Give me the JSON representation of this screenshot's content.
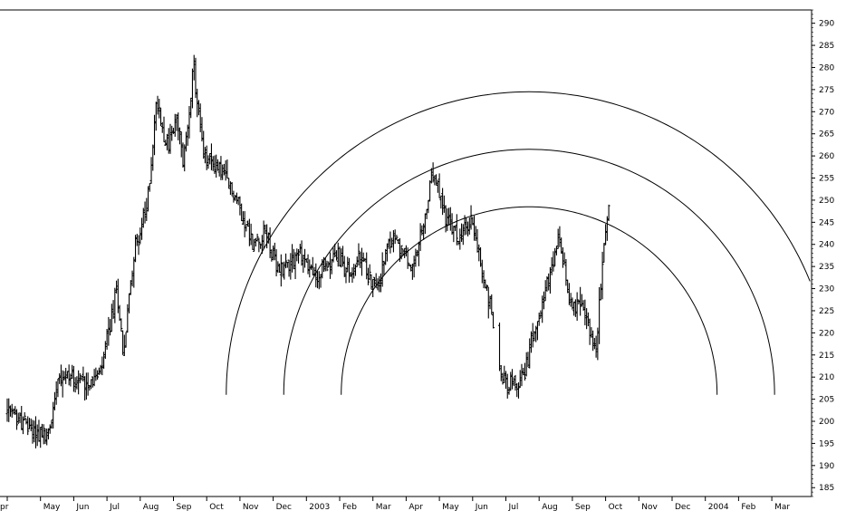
{
  "chart_data": {
    "type": "ohlc",
    "x_axis": {
      "tick_labels": [
        "Apr",
        "May",
        "Jun",
        "Jul",
        "Aug",
        "Sep",
        "Oct",
        "Nov",
        "Dec",
        "2003",
        "Feb",
        "Mar",
        "Apr",
        "May",
        "Jun",
        "Jul",
        "Aug",
        "Sep",
        "Oct",
        "Nov",
        "Dec",
        "2004",
        "Feb",
        "Mar"
      ],
      "first_label_shown": "pr"
    },
    "y_axis": {
      "position": "right",
      "ylim": [
        183,
        293
      ],
      "tick_values": [
        185,
        190,
        195,
        200,
        205,
        210,
        215,
        220,
        225,
        230,
        235,
        240,
        245,
        250,
        255,
        260,
        265,
        270,
        275,
        280,
        285,
        290
      ]
    },
    "grid": false,
    "series": [
      {
        "style": "bar",
        "color": "#000000",
        "waypoints": [
          [
            0,
            202
          ],
          [
            1.2,
            196
          ],
          [
            1.4,
            203
          ],
          [
            1.5,
            211
          ],
          [
            2.3,
            209
          ],
          [
            2.8,
            210
          ],
          [
            3.0,
            218
          ],
          [
            3.3,
            230
          ],
          [
            3.5,
            215
          ],
          [
            3.8,
            238
          ],
          [
            4.2,
            248
          ],
          [
            4.5,
            273
          ],
          [
            4.8,
            262
          ],
          [
            5.1,
            268
          ],
          [
            5.3,
            258
          ],
          [
            5.6,
            280
          ],
          [
            5.9,
            260
          ],
          [
            6.4,
            257
          ],
          [
            6.9,
            250
          ],
          [
            7.4,
            240
          ],
          [
            7.8,
            243
          ],
          [
            8.1,
            234
          ],
          [
            8.8,
            238
          ],
          [
            9.0,
            236
          ],
          [
            9.3,
            232
          ],
          [
            9.9,
            238
          ],
          [
            10.3,
            233
          ],
          [
            10.6,
            237
          ],
          [
            11.1,
            230
          ],
          [
            11.6,
            242
          ],
          [
            12.2,
            234
          ],
          [
            12.5,
            243
          ],
          [
            12.8,
            256
          ],
          [
            13.2,
            246
          ],
          [
            13.6,
            241
          ],
          [
            14.0,
            246
          ],
          [
            14.3,
            233
          ],
          [
            14.6,
            224
          ],
          [
            14.8,
            211
          ],
          [
            15.3,
            207
          ],
          [
            15.6,
            212
          ],
          [
            15.9,
            223
          ],
          [
            16.3,
            232
          ],
          [
            16.6,
            241
          ],
          [
            16.9,
            228
          ],
          [
            17.2,
            226
          ],
          [
            17.5,
            222
          ],
          [
            17.7,
            215
          ],
          [
            17.95,
            240
          ],
          [
            18.1,
            249
          ]
        ]
      }
    ],
    "arcs": [
      {
        "center_x": 15.7,
        "center_y": 206,
        "radius_y": 42.5
      },
      {
        "center_x": 15.7,
        "center_y": 206,
        "radius_y": 55.5
      },
      {
        "center_x": 15.7,
        "center_y": 206,
        "radius_y": 68.5
      }
    ]
  }
}
